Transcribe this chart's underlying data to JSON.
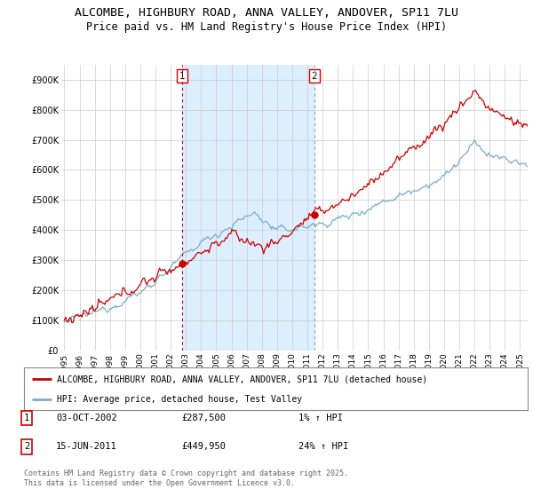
{
  "title": "ALCOMBE, HIGHBURY ROAD, ANNA VALLEY, ANDOVER, SP11 7LU",
  "subtitle": "Price paid vs. HM Land Registry's House Price Index (HPI)",
  "ylabel_ticks": [
    "£0",
    "£100K",
    "£200K",
    "£300K",
    "£400K",
    "£500K",
    "£600K",
    "£700K",
    "£800K",
    "£900K"
  ],
  "ytick_values": [
    0,
    100000,
    200000,
    300000,
    400000,
    500000,
    600000,
    700000,
    800000,
    900000
  ],
  "ylim": [
    0,
    950000
  ],
  "xlim_start": 1994.8,
  "xlim_end": 2025.5,
  "xticks": [
    1995,
    1996,
    1997,
    1998,
    1999,
    2000,
    2001,
    2002,
    2003,
    2004,
    2005,
    2006,
    2007,
    2008,
    2009,
    2010,
    2011,
    2012,
    2013,
    2014,
    2015,
    2016,
    2017,
    2018,
    2019,
    2020,
    2021,
    2022,
    2023,
    2024,
    2025
  ],
  "sale1_x": 2002.75,
  "sale1_y": 287500,
  "sale1_label": "1",
  "sale2_x": 2011.46,
  "sale2_y": 449950,
  "sale2_label": "2",
  "red_line_color": "#cc0000",
  "blue_line_color": "#7aadcf",
  "shade_color": "#ddeeff",
  "background_color": "#ffffff",
  "plot_bg_color": "#ffffff",
  "grid_color": "#cccccc",
  "legend_line1": "ALCOMBE, HIGHBURY ROAD, ANNA VALLEY, ANDOVER, SP11 7LU (detached house)",
  "legend_line2": "HPI: Average price, detached house, Test Valley",
  "footer": "Contains HM Land Registry data © Crown copyright and database right 2025.\nThis data is licensed under the Open Government Licence v3.0.",
  "title_fontsize": 9.5,
  "subtitle_fontsize": 8.5
}
